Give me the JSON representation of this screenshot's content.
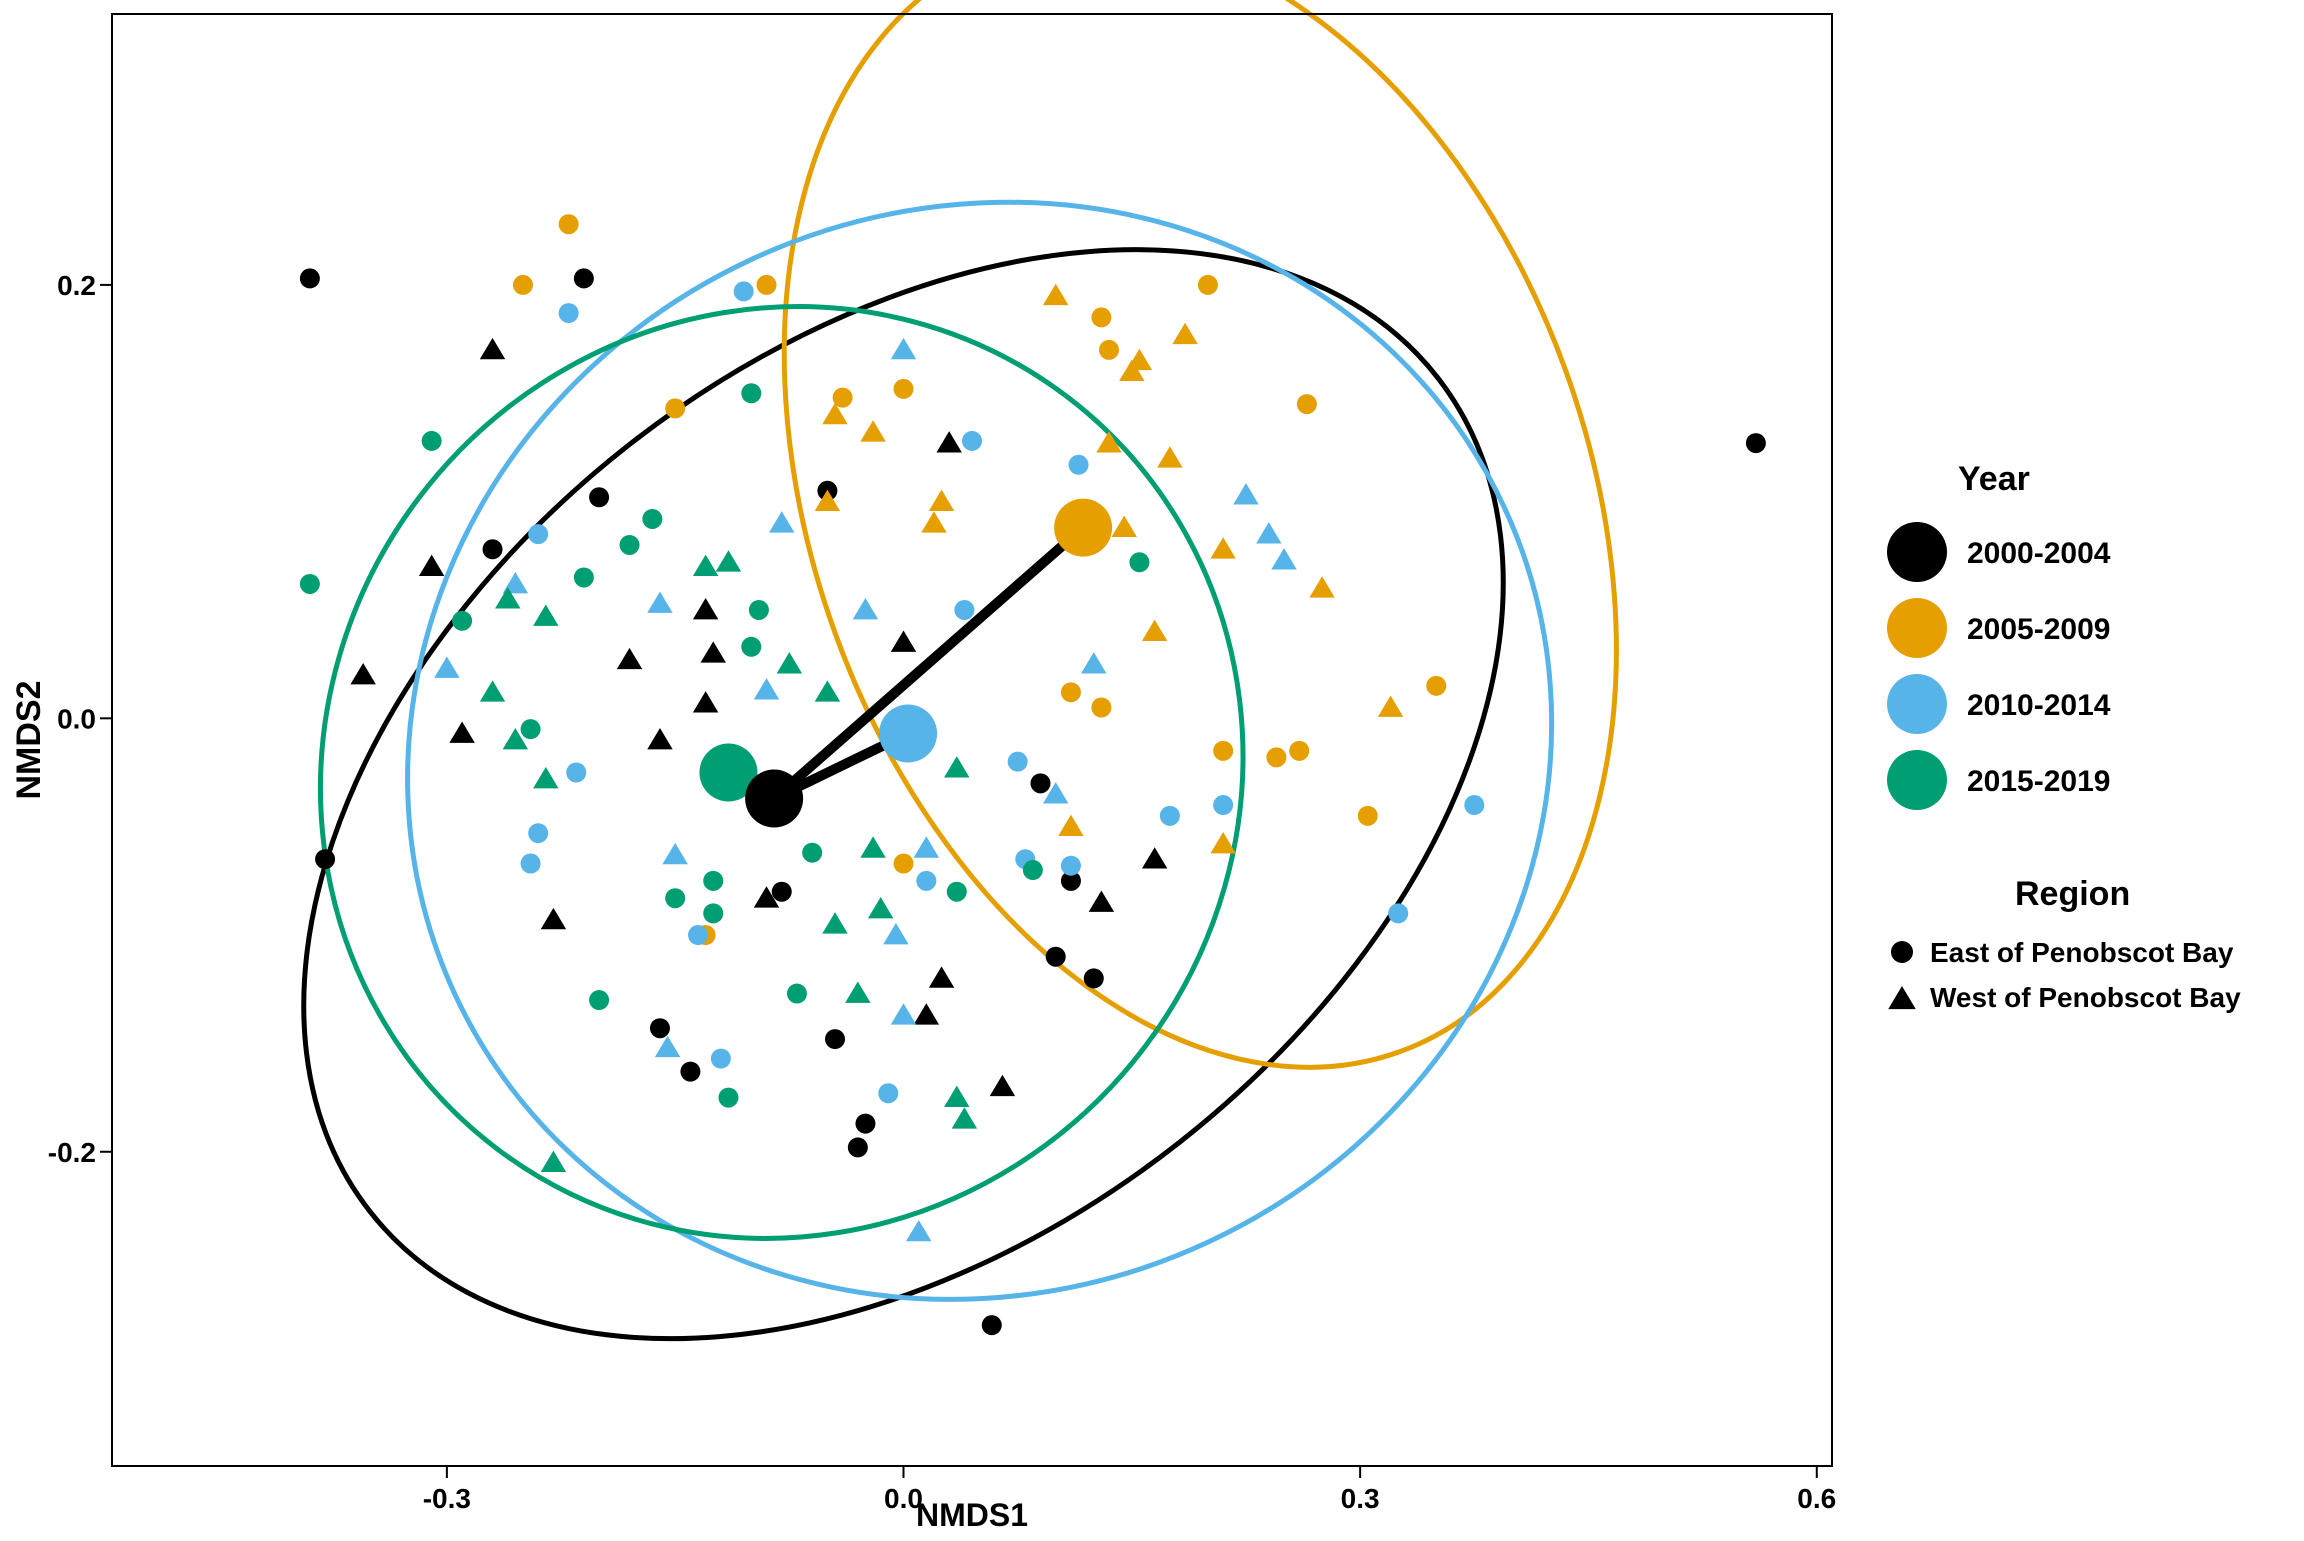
{
  "chart_data": {
    "type": "scatter",
    "xlabel": "NMDS1",
    "ylabel": "NMDS2",
    "xlim": [
      -0.52,
      0.61
    ],
    "ylim": [
      -0.345,
      0.325
    ],
    "xticks": [
      -0.3,
      0.0,
      0.3,
      0.6
    ],
    "yticks": [
      -0.2,
      0.0,
      0.2
    ],
    "xtick_labels": [
      "-0.3",
      "0.0",
      "0.3",
      "0.6"
    ],
    "ytick_labels": [
      "-0.2",
      "0.0",
      "0.2"
    ],
    "grid": false,
    "legend_position": "right",
    "legend": {
      "year_title": "Year",
      "region_title": "Region",
      "year_items": [
        {
          "label": "2000-2004",
          "color": "#000000"
        },
        {
          "label": "2005-2009",
          "color": "#E69F00"
        },
        {
          "label": "2010-2014",
          "color": "#56B4E9"
        },
        {
          "label": "2015-2019",
          "color": "#009E73"
        }
      ],
      "region_items": [
        {
          "label": "East of Penobscot Bay",
          "shape": "circle"
        },
        {
          "label": "West of Penobscot Bay",
          "shape": "triangle"
        }
      ]
    },
    "series": [
      {
        "name": "2000-2004",
        "color": "#000000",
        "centroid": [
          -0.085,
          -0.037
        ],
        "ellipse": {
          "cx": 0.0,
          "cy": -0.035,
          "rx": 0.445,
          "ry": 0.205,
          "angle_deg": -38
        },
        "circle_points": [
          [
            -0.39,
            0.203
          ],
          [
            -0.21,
            0.203
          ],
          [
            -0.38,
            -0.065
          ],
          [
            -0.27,
            0.078
          ],
          [
            -0.2,
            0.102
          ],
          [
            -0.05,
            0.105
          ],
          [
            -0.08,
            -0.08
          ],
          [
            0.09,
            -0.03
          ],
          [
            0.11,
            -0.075
          ],
          [
            0.1,
            -0.11
          ],
          [
            0.125,
            -0.12
          ],
          [
            -0.16,
            -0.143
          ],
          [
            -0.14,
            -0.163
          ],
          [
            -0.045,
            -0.148
          ],
          [
            -0.03,
            -0.198
          ],
          [
            -0.025,
            -0.187
          ],
          [
            0.058,
            -0.28
          ],
          [
            0.56,
            0.127
          ]
        ],
        "triangle_points": [
          [
            -0.27,
            0.17
          ],
          [
            -0.31,
            0.07
          ],
          [
            -0.355,
            0.02
          ],
          [
            -0.29,
            -0.007
          ],
          [
            -0.18,
            0.027
          ],
          [
            -0.16,
            -0.01
          ],
          [
            -0.13,
            0.05
          ],
          [
            -0.125,
            0.03
          ],
          [
            -0.13,
            0.007
          ],
          [
            0.0,
            0.035
          ],
          [
            0.03,
            0.127
          ],
          [
            0.13,
            -0.085
          ],
          [
            0.165,
            -0.065
          ],
          [
            -0.23,
            -0.093
          ],
          [
            -0.09,
            -0.083
          ],
          [
            0.025,
            -0.12
          ],
          [
            0.015,
            -0.137
          ],
          [
            0.065,
            -0.17
          ]
        ]
      },
      {
        "name": "2005-2009",
        "color": "#E69F00",
        "centroid": [
          0.118,
          0.088
        ],
        "ellipse": {
          "cx": 0.195,
          "cy": 0.1,
          "rx": 0.255,
          "ry": 0.27,
          "angle_deg": -20
        },
        "circle_points": [
          [
            -0.25,
            0.2
          ],
          [
            -0.22,
            0.228
          ],
          [
            -0.09,
            0.2
          ],
          [
            -0.15,
            0.143
          ],
          [
            -0.04,
            0.148
          ],
          [
            0.0,
            0.152
          ],
          [
            0.13,
            0.185
          ],
          [
            0.135,
            0.17
          ],
          [
            0.2,
            0.2
          ],
          [
            0.265,
            0.145
          ],
          [
            0.35,
            0.015
          ],
          [
            0.305,
            -0.045
          ],
          [
            0.26,
            -0.015
          ],
          [
            0.245,
            -0.018
          ],
          [
            0.21,
            -0.015
          ],
          [
            0.13,
            0.005
          ],
          [
            0.11,
            0.012
          ],
          [
            -0.13,
            -0.1
          ],
          [
            0.0,
            -0.067
          ]
        ],
        "triangle_points": [
          [
            -0.045,
            0.14
          ],
          [
            -0.02,
            0.132
          ],
          [
            0.1,
            0.195
          ],
          [
            0.15,
            0.16
          ],
          [
            0.155,
            0.165
          ],
          [
            0.185,
            0.177
          ],
          [
            0.135,
            0.127
          ],
          [
            0.175,
            0.12
          ],
          [
            0.145,
            0.088
          ],
          [
            0.025,
            0.1
          ],
          [
            0.02,
            0.09
          ],
          [
            -0.05,
            0.1
          ],
          [
            0.165,
            0.04
          ],
          [
            0.21,
            0.078
          ],
          [
            0.275,
            0.06
          ],
          [
            0.32,
            0.005
          ],
          [
            0.11,
            -0.05
          ],
          [
            0.21,
            -0.058
          ]
        ]
      },
      {
        "name": "2010-2014",
        "color": "#56B4E9",
        "centroid": [
          0.003,
          -0.007
        ],
        "ellipse": {
          "cx": 0.05,
          "cy": -0.015,
          "rx": 0.38,
          "ry": 0.25,
          "angle_deg": -25
        },
        "circle_points": [
          [
            -0.22,
            0.187
          ],
          [
            -0.105,
            0.197
          ],
          [
            0.045,
            0.128
          ],
          [
            0.115,
            0.117
          ],
          [
            -0.24,
            0.085
          ],
          [
            0.04,
            0.05
          ],
          [
            0.075,
            -0.02
          ],
          [
            -0.215,
            -0.025
          ],
          [
            -0.24,
            -0.053
          ],
          [
            -0.245,
            -0.067
          ],
          [
            0.08,
            -0.065
          ],
          [
            0.11,
            -0.068
          ],
          [
            0.015,
            -0.075
          ],
          [
            0.375,
            -0.04
          ],
          [
            0.21,
            -0.04
          ],
          [
            0.175,
            -0.045
          ],
          [
            0.325,
            -0.09
          ],
          [
            -0.135,
            -0.1
          ],
          [
            -0.12,
            -0.157
          ],
          [
            -0.01,
            -0.173
          ]
        ],
        "triangle_points": [
          [
            0.0,
            0.17
          ],
          [
            -0.08,
            0.09
          ],
          [
            0.225,
            0.103
          ],
          [
            0.24,
            0.085
          ],
          [
            0.25,
            0.073
          ],
          [
            -0.16,
            0.053
          ],
          [
            -0.025,
            0.05
          ],
          [
            0.125,
            0.025
          ],
          [
            -0.3,
            0.023
          ],
          [
            -0.09,
            0.013
          ],
          [
            0.1,
            -0.035
          ],
          [
            -0.255,
            0.062
          ],
          [
            -0.15,
            -0.063
          ],
          [
            0.015,
            -0.06
          ],
          [
            -0.005,
            -0.1
          ],
          [
            -0.155,
            -0.152
          ],
          [
            0.0,
            -0.137
          ],
          [
            0.01,
            -0.237
          ]
        ]
      },
      {
        "name": "2015-2019",
        "color": "#009E73",
        "centroid": [
          -0.115,
          -0.025
        ],
        "ellipse": {
          "cx": -0.08,
          "cy": -0.025,
          "rx": 0.31,
          "ry": 0.21,
          "angle_deg": -53
        },
        "circle_points": [
          [
            -0.39,
            0.062
          ],
          [
            -0.31,
            0.128
          ],
          [
            -0.1,
            0.15
          ],
          [
            -0.165,
            0.092
          ],
          [
            -0.18,
            0.08
          ],
          [
            -0.21,
            0.065
          ],
          [
            -0.29,
            0.045
          ],
          [
            -0.095,
            0.05
          ],
          [
            -0.1,
            0.033
          ],
          [
            -0.245,
            -0.005
          ],
          [
            -0.06,
            -0.062
          ],
          [
            -0.125,
            -0.075
          ],
          [
            -0.15,
            -0.083
          ],
          [
            -0.125,
            -0.09
          ],
          [
            0.035,
            -0.08
          ],
          [
            0.085,
            -0.07
          ],
          [
            0.155,
            0.072
          ],
          [
            -0.2,
            -0.13
          ],
          [
            -0.07,
            -0.127
          ],
          [
            -0.115,
            -0.175
          ]
        ],
        "triangle_points": [
          [
            -0.13,
            0.07
          ],
          [
            -0.115,
            0.072
          ],
          [
            -0.26,
            0.055
          ],
          [
            -0.235,
            0.047
          ],
          [
            -0.27,
            0.012
          ],
          [
            -0.075,
            0.025
          ],
          [
            -0.05,
            0.012
          ],
          [
            -0.255,
            -0.01
          ],
          [
            -0.235,
            -0.028
          ],
          [
            0.035,
            -0.023
          ],
          [
            -0.02,
            -0.06
          ],
          [
            -0.015,
            -0.088
          ],
          [
            -0.045,
            -0.095
          ],
          [
            -0.03,
            -0.127
          ],
          [
            0.035,
            -0.175
          ],
          [
            0.04,
            -0.185
          ],
          [
            -0.23,
            -0.205
          ]
        ]
      }
    ]
  }
}
